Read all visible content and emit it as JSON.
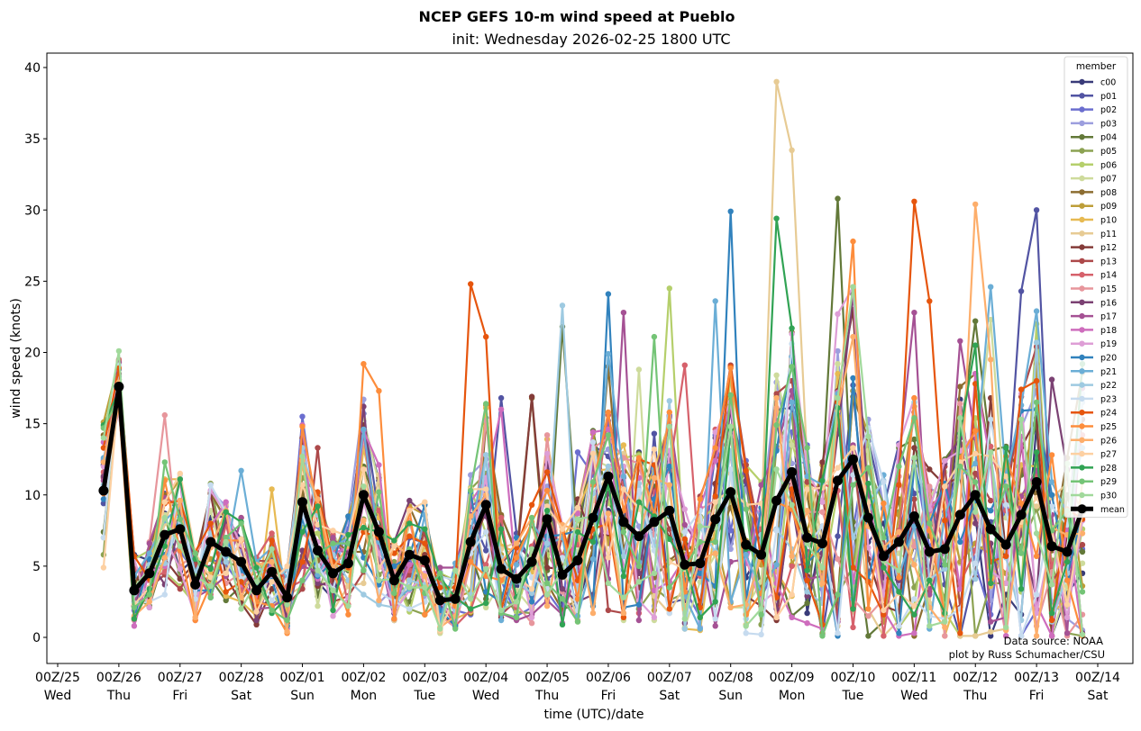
{
  "chart_data": {
    "type": "line",
    "title": "NCEP GEFS 10-m wind speed at Pueblo",
    "subtitle": "init: Wednesday 2026-02-25 1800 UTC",
    "xlabel": "time (UTC)/date",
    "ylabel": "wind speed (knots)",
    "ylim": [
      -1.8,
      41
    ],
    "yticks": [
      0,
      5,
      10,
      15,
      20,
      25,
      30,
      35,
      40
    ],
    "xlim_hours_from_0225_00Z": [
      -18,
      444
    ],
    "xticks": [
      {
        "hours": 0,
        "top": "00Z/25",
        "bottom": "Wed"
      },
      {
        "hours": 24,
        "top": "00Z/26",
        "bottom": "Thu"
      },
      {
        "hours": 48,
        "top": "00Z/27",
        "bottom": "Fri"
      },
      {
        "hours": 72,
        "top": "00Z/28",
        "bottom": "Sat"
      },
      {
        "hours": 96,
        "top": "00Z/01",
        "bottom": "Sun"
      },
      {
        "hours": 120,
        "top": "00Z/02",
        "bottom": "Mon"
      },
      {
        "hours": 144,
        "top": "00Z/03",
        "bottom": "Tue"
      },
      {
        "hours": 168,
        "top": "00Z/04",
        "bottom": "Wed"
      },
      {
        "hours": 192,
        "top": "00Z/05",
        "bottom": "Thu"
      },
      {
        "hours": 216,
        "top": "00Z/06",
        "bottom": "Fri"
      },
      {
        "hours": 240,
        "top": "00Z/07",
        "bottom": "Sat"
      },
      {
        "hours": 264,
        "top": "00Z/08",
        "bottom": "Sun"
      },
      {
        "hours": 288,
        "top": "00Z/09",
        "bottom": "Mon"
      },
      {
        "hours": 312,
        "top": "00Z/10",
        "bottom": "Tue"
      },
      {
        "hours": 336,
        "top": "00Z/11",
        "bottom": "Wed"
      },
      {
        "hours": 360,
        "top": "00Z/12",
        "bottom": "Thu"
      },
      {
        "hours": 384,
        "top": "00Z/13",
        "bottom": "Fri"
      },
      {
        "hours": 408,
        "top": "00Z/14",
        "bottom": "Sat"
      }
    ],
    "time_start_hours": 18,
    "time_step_hours": 6,
    "grid": false,
    "legend": {
      "title": "member",
      "placement": "top-right"
    },
    "annotations": [
      "Data source: NOAA",
      "plot by Russ Schumacher/CSU"
    ],
    "mean": {
      "name": "mean",
      "color": "#000000",
      "values": [
        10.3,
        17.6,
        3.3,
        4.5,
        7.2,
        7.6,
        3.7,
        6.7,
        6.0,
        5.3,
        3.3,
        4.6,
        2.8,
        9.5,
        6.1,
        4.5,
        5.2,
        10.0,
        7.4,
        4.0,
        5.8,
        5.4,
        2.6,
        2.7,
        6.7,
        9.3,
        4.8,
        4.1,
        5.3,
        8.3,
        4.4,
        5.4,
        8.4,
        11.3,
        8.1,
        7.1,
        8.1,
        8.9,
        5.1,
        5.2,
        8.3,
        10.2,
        6.5,
        5.8,
        9.6,
        11.6,
        7.0,
        6.6,
        11.0,
        12.5,
        8.4,
        5.7,
        6.7,
        8.5,
        6.0,
        6.2,
        8.6,
        10.0,
        7.6,
        6.5,
        8.6,
        10.9,
        6.4,
        6.0,
        9.0
      ]
    },
    "series": [
      {
        "name": "c00",
        "color": "#393b79"
      },
      {
        "name": "p01",
        "color": "#5254a3",
        "peaks": {
          "26": 16.8,
          "60": 24.3,
          "61": 30.0
        }
      },
      {
        "name": "p02",
        "color": "#6b6ecf",
        "peaks": {
          "31": 13.0,
          "45": 14.4
        }
      },
      {
        "name": "p03",
        "color": "#9c9ede",
        "peaks": {
          "48": 20.1
        }
      },
      {
        "name": "p04",
        "color": "#637939",
        "peaks": {
          "30": 21.8,
          "48": 30.8,
          "57": 22.2
        }
      },
      {
        "name": "p05",
        "color": "#8ca252",
        "peaks": {
          "0": 5.8
        }
      },
      {
        "name": "p06",
        "color": "#b5cf6b",
        "peaks": {
          "37": 24.5
        }
      },
      {
        "name": "p07",
        "color": "#cedb9c",
        "peaks": {
          "17": 15.3,
          "35": 18.8,
          "58": 22.3
        }
      },
      {
        "name": "p08",
        "color": "#8c6d31",
        "peaks": {
          "7": 10.1,
          "28": 16.8
        }
      },
      {
        "name": "p09",
        "color": "#bd9e39",
        "peaks": {
          "44": 16.9
        }
      },
      {
        "name": "p10",
        "color": "#e7ba52",
        "peaks": {
          "11": 10.4
        }
      },
      {
        "name": "p11",
        "color": "#e7cb94",
        "peaks": {
          "44": 39.0,
          "45": 34.2
        }
      },
      {
        "name": "p12",
        "color": "#843c39",
        "peaks": {
          "13": 14.0,
          "28": 16.9,
          "58": 16.8
        }
      },
      {
        "name": "p13",
        "color": "#ad494a",
        "peaks": {
          "14": 13.3,
          "45": 18.0
        }
      },
      {
        "name": "p14",
        "color": "#d6616b",
        "peaks": {
          "38": 19.1
        }
      },
      {
        "name": "p15",
        "color": "#e7969c",
        "peaks": {
          "4": 15.6
        }
      },
      {
        "name": "p16",
        "color": "#7b4173",
        "peaks": {
          "62": 18.1
        }
      },
      {
        "name": "p17",
        "color": "#a55194",
        "peaks": {
          "34": 22.8,
          "53": 22.8,
          "56": 20.8
        }
      },
      {
        "name": "p18",
        "color": "#ce6dbd",
        "peaks": {
          "26": 16.0
        }
      },
      {
        "name": "p19",
        "color": "#de9ed6",
        "peaks": {
          "48": 22.7
        }
      },
      {
        "name": "p20",
        "color": "#3182bd",
        "peaks": {
          "33": 24.1,
          "41": 29.9
        }
      },
      {
        "name": "p21",
        "color": "#6baed6",
        "peaks": {
          "9": 11.7,
          "40": 23.6,
          "58": 24.6
        }
      },
      {
        "name": "p22",
        "color": "#9ecae1",
        "peaks": {
          "30": 23.3,
          "61": 20.7
        }
      },
      {
        "name": "p23",
        "color": "#c6dbef",
        "peaks": {
          "42": 0.3,
          "43": 0.2
        }
      },
      {
        "name": "p24",
        "color": "#e6550d",
        "peaks": {
          "24": 24.8,
          "25": 21.1,
          "53": 30.6,
          "54": 23.6
        }
      },
      {
        "name": "p25",
        "color": "#fd8d3c",
        "peaks": {
          "17": 19.2,
          "18": 17.3,
          "49": 27.8
        }
      },
      {
        "name": "p26",
        "color": "#fdae6b",
        "peaks": {
          "57": 30.4,
          "58": 19.5
        }
      },
      {
        "name": "p27",
        "color": "#fdd0a2",
        "peaks": {
          "21": 9.5
        }
      },
      {
        "name": "p28",
        "color": "#31a354",
        "peaks": {
          "44": 29.4,
          "45": 21.7
        }
      },
      {
        "name": "p29",
        "color": "#74c476",
        "peaks": {
          "4": 12.3,
          "36": 21.1,
          "41": 17.0
        }
      },
      {
        "name": "p30",
        "color": "#a1d99b",
        "peaks": {
          "1": 20.1
        }
      }
    ]
  }
}
